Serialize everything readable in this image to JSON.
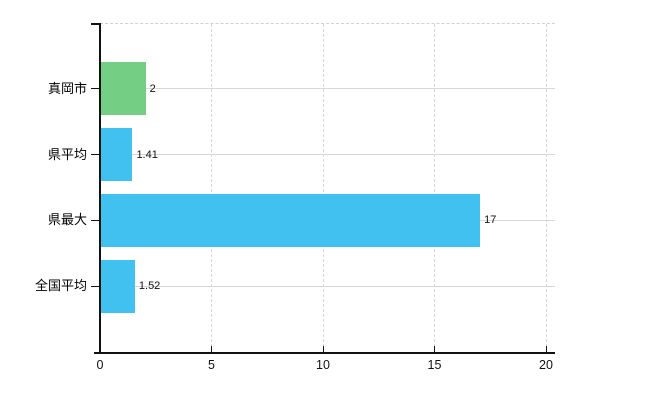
{
  "chart_data": {
    "type": "bar",
    "orientation": "horizontal",
    "title": "",
    "categories": [
      "真岡市",
      "県平均",
      "県最大",
      "全国平均"
    ],
    "values": [
      2,
      1.41,
      17,
      1.52
    ],
    "value_labels": [
      "2",
      "1.41",
      "17",
      "1.52"
    ],
    "bar_colors": [
      "#74ce84",
      "#41c1f0",
      "#41c1f0",
      "#41c1f0"
    ],
    "xlim": [
      0,
      20
    ],
    "x_ticks": [
      0,
      5,
      10,
      15,
      20
    ],
    "x_tick_labels": [
      "0",
      "5",
      "10",
      "15",
      "20"
    ],
    "grid": true,
    "legend": "none",
    "colors": {
      "highlight_bar": "#74ce84",
      "default_bar": "#41c1f0",
      "gridline": "#d7d7d7",
      "top_border": "#d6cfcf",
      "axis": "#111111",
      "text": "#000000",
      "background": "#ffffff"
    }
  }
}
